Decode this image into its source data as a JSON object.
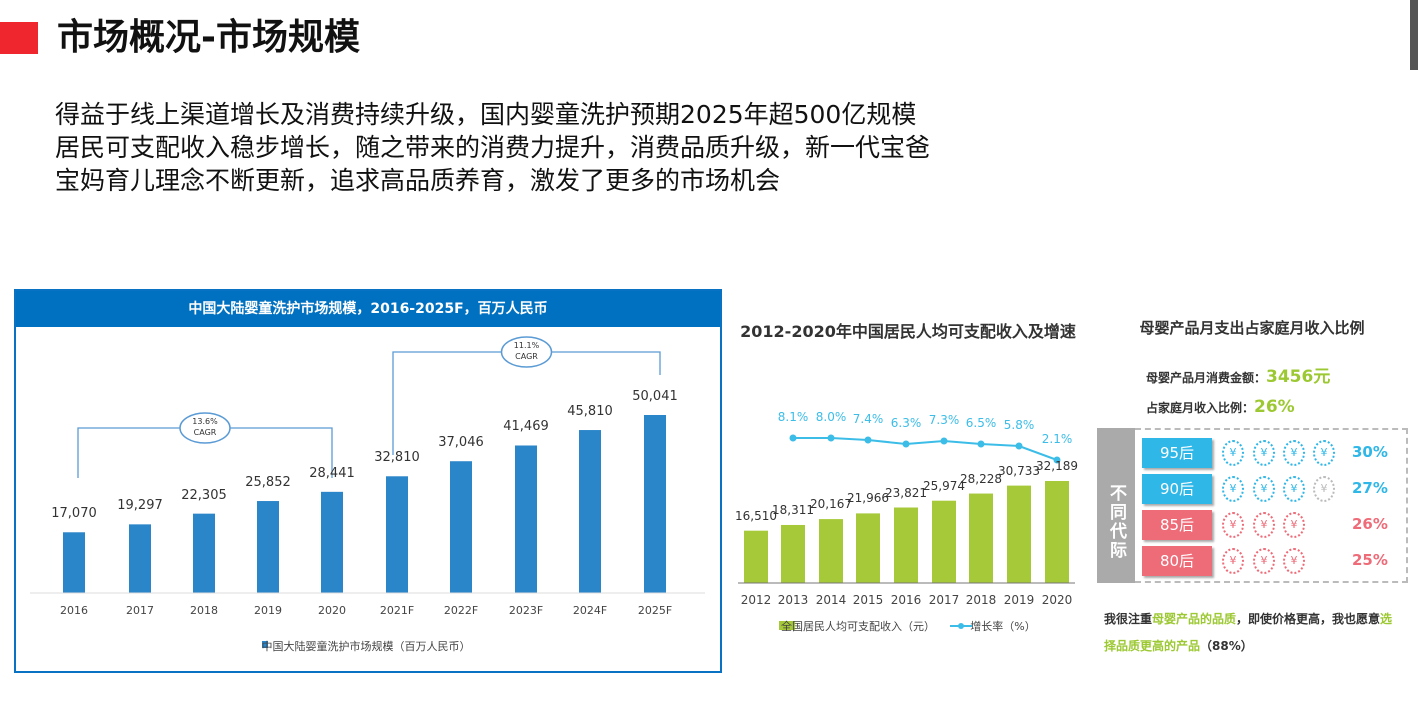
{
  "header": {
    "title": "市场概况-市场规模",
    "lines": [
      "得益于线上渠道增长及消费持续升级，国内婴童洗护预期2025年超500亿规模",
      "居民可支配收入稳步增长，随之带来的消费力提升，消费品质升级，新一代宝爸",
      "宝妈育儿理念不断更新，追求高品质养育，激发了更多的市场机会"
    ]
  },
  "chart_data": [
    {
      "type": "bar",
      "title": "中国大陆婴童洗护市场规模，2016-2025F，百万人民币",
      "categories": [
        "2016",
        "2017",
        "2018",
        "2019",
        "2020",
        "2021F",
        "2022F",
        "2023F",
        "2024F",
        "2025F"
      ],
      "values": [
        17070,
        19297,
        22305,
        25852,
        28441,
        32810,
        37046,
        41469,
        45810,
        50041
      ],
      "value_labels": [
        "17,070",
        "19,297",
        "22,305",
        "25,852",
        "28,441",
        "32,810",
        "37,046",
        "41,469",
        "45,810",
        "50,041"
      ],
      "legend": "中国大陆婴童洗护市场规模（百万人民币）",
      "annotations": [
        {
          "from": "2016",
          "to": "2020",
          "line1": "13.6%",
          "line2": "CAGR"
        },
        {
          "from": "2021F",
          "to": "2025F",
          "line1": "11.1%",
          "line2": "CAGR"
        }
      ],
      "color": "#2a85c9"
    },
    {
      "type": "bar+line",
      "title": "2012-2020年中国居民人均可支配收入及增速",
      "categories": [
        "2012",
        "2013",
        "2014",
        "2015",
        "2016",
        "2017",
        "2018",
        "2019",
        "2020"
      ],
      "series": [
        {
          "name": "全国居民人均可支配收入（元）",
          "values": [
            16510,
            18311,
            20167,
            21966,
            23821,
            25974,
            28228,
            30733,
            32189
          ],
          "labels": [
            "16,510",
            "18,311",
            "20,167",
            "21,966",
            "23,821",
            "25,974",
            "28,228",
            "30,733",
            "32,189"
          ],
          "color": "#a6c93a"
        },
        {
          "name": "增长率（%）",
          "x": [
            "2013",
            "2014",
            "2015",
            "2016",
            "2017",
            "2018",
            "2019",
            "2020"
          ],
          "values": [
            8.1,
            8.0,
            7.4,
            6.3,
            7.3,
            6.5,
            5.8,
            2.1
          ],
          "labels": [
            "8.1%",
            "8.0%",
            "7.4%",
            "6.3%",
            "7.3%",
            "6.5%",
            "5.8%",
            "2.1%"
          ],
          "color": "#3cbde8"
        }
      ]
    },
    {
      "type": "infographic",
      "title": "母婴产品月支出占家庭月收入比例",
      "spend_label": "母婴产品月消费金额：",
      "spend_value": "3456元",
      "ratio_label": "占家庭月收入比例：",
      "ratio_value": "26%",
      "side_label": "不同代际",
      "coin_glyph": "¥",
      "rows": [
        {
          "label": "95后",
          "pct": "30%",
          "value": 30,
          "coins": 4,
          "color": "#2fb7e8"
        },
        {
          "label": "90后",
          "pct": "27%",
          "value": 27,
          "coins": 3,
          "color": "#2fb7e8"
        },
        {
          "label": "85后",
          "pct": "26%",
          "value": 26,
          "coins": 3,
          "color": "#ee6b78"
        },
        {
          "label": "80后",
          "pct": "25%",
          "value": 25,
          "coins": 3,
          "color": "#ee6b78"
        }
      ],
      "note": {
        "p1": "我很注重",
        "p2": "母婴产品的品质",
        "p3": "，即使价格更高，我也愿意",
        "p4": "选择",
        "p5": "品质更高的产品",
        "p6": "（88%）"
      }
    }
  ]
}
